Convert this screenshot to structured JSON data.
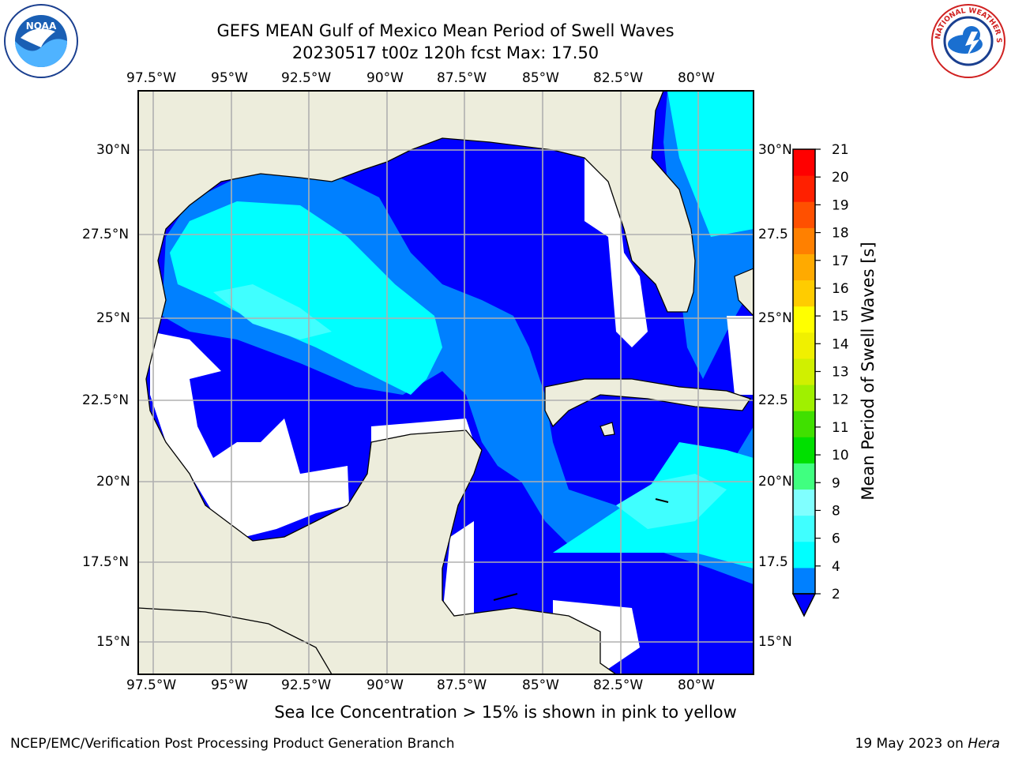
{
  "title_line1": "GEFS MEAN Gulf of Mexico Mean Period of Swell Waves",
  "title_line2": "20230517 t00z 120h fcst   Max: 17.50",
  "lon_labels": [
    "97.5°W",
    "95°W",
    "92.5°W",
    "90°W",
    "87.5°W",
    "85°W",
    "82.5°W",
    "80°W"
  ],
  "lat_labels_left": [
    "30°N",
    "27.5°N",
    "25°N",
    "22.5°N",
    "20°N",
    "17.5°N",
    "15°N"
  ],
  "lat_labels_right": [
    "30°N",
    "27.5",
    "25°N",
    "22.5",
    "20°N",
    "17.5",
    "15°N"
  ],
  "colorbar": {
    "label": "Mean Period of Swell Waves [s]",
    "ticks": [
      "21",
      "20",
      "19",
      "18",
      "17",
      "16",
      "15",
      "14",
      "13",
      "12",
      "11",
      "10",
      "9",
      "8",
      "6",
      "4",
      "2"
    ],
    "colors": [
      "#0000ff",
      "#0080ff",
      "#00ffff",
      "#40ffff",
      "#80ffff",
      "#40ff80",
      "#00e000",
      "#40e000",
      "#a0f000",
      "#d0f000",
      "#f0f000",
      "#ffff00",
      "#ffcc00",
      "#ffaa00",
      "#ff8000",
      "#ff5000",
      "#ff2000",
      "#ff0000"
    ]
  },
  "note": "Sea Ice Concentration > 15% is shown in pink to yellow",
  "footer_left": "NCEP/EMC/Verification Post Processing Product Generation Branch",
  "footer_right_date": "19 May 2023 on ",
  "footer_right_host": "Hera",
  "logo_left": "NOAA",
  "logo_right": "NATIONAL WEATHER SERVICE"
}
